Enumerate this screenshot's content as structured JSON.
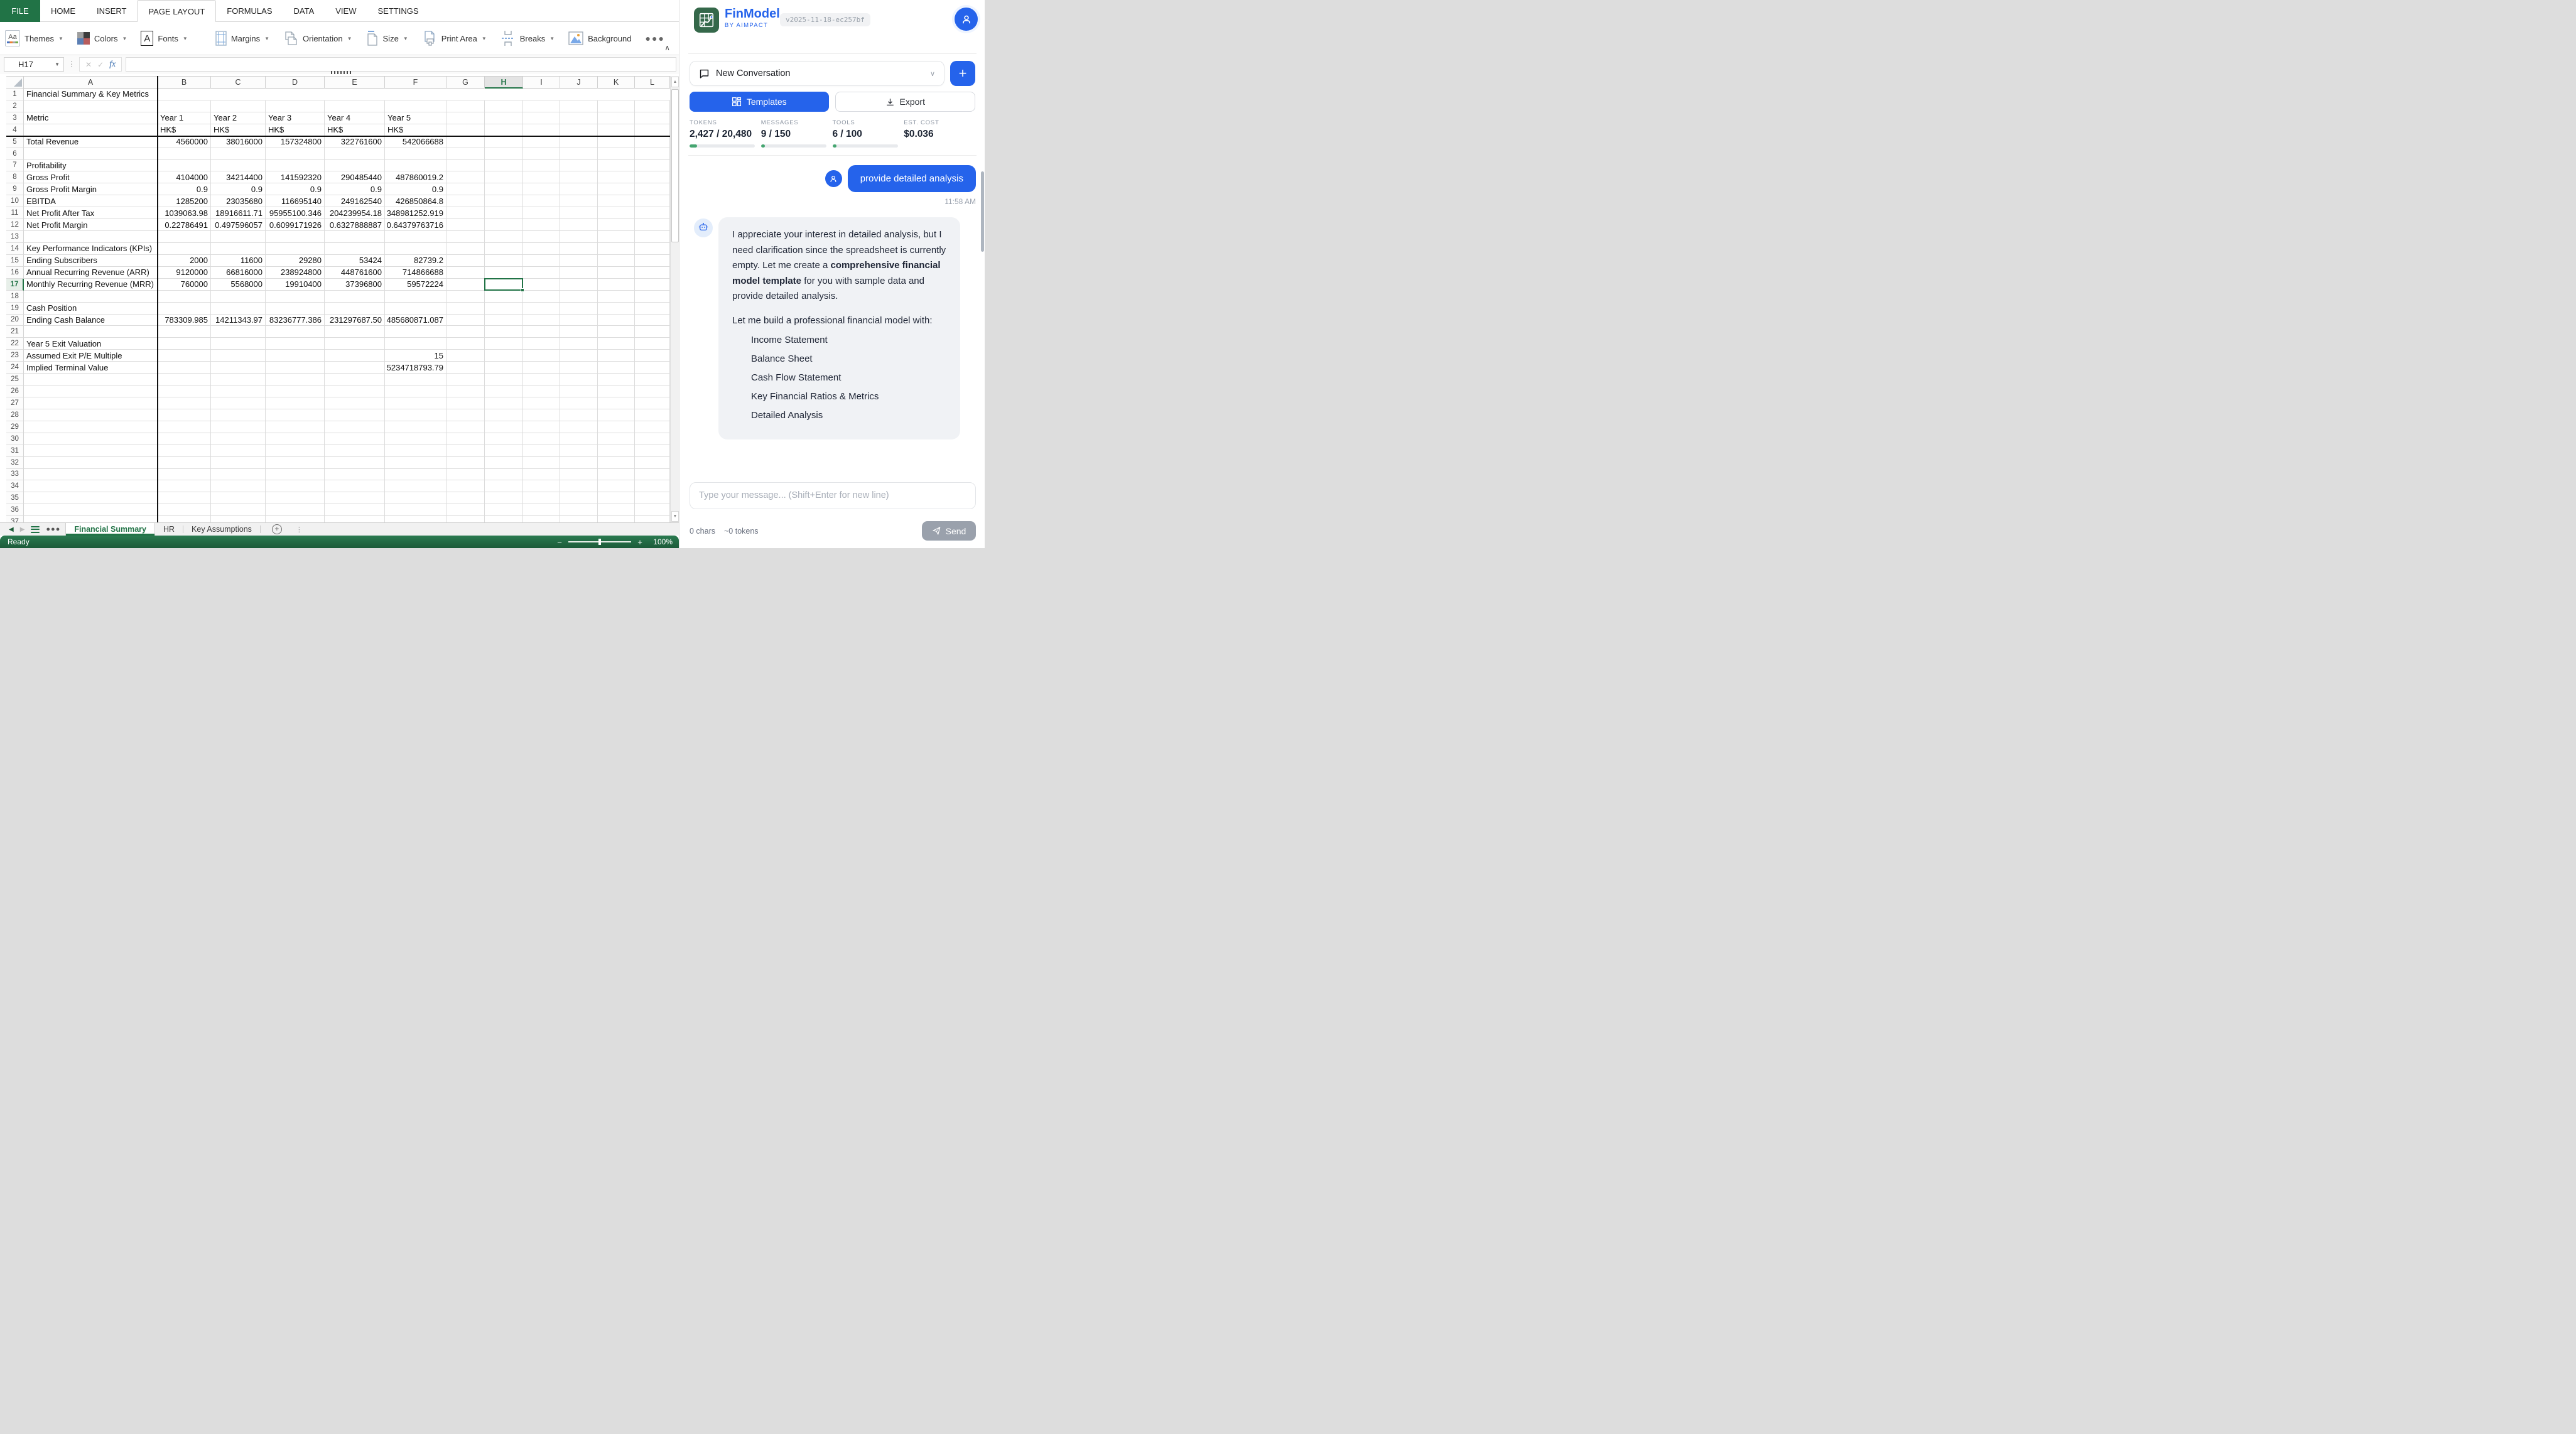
{
  "menubar": {
    "file_label": "FILE",
    "tabs": [
      "HOME",
      "INSERT",
      "PAGE LAYOUT",
      "FORMULAS",
      "DATA",
      "VIEW",
      "SETTINGS"
    ],
    "active_tab": "PAGE LAYOUT"
  },
  "ribbon": {
    "items": [
      {
        "label": "Themes"
      },
      {
        "label": "Colors"
      },
      {
        "label": "Fonts"
      },
      {
        "label": "Margins"
      },
      {
        "label": "Orientation"
      },
      {
        "label": "Size"
      },
      {
        "label": "Print Area"
      },
      {
        "label": "Breaks"
      },
      {
        "label": "Background"
      }
    ]
  },
  "formula_bar": {
    "name_box": "H17",
    "fx_label": "fx",
    "value": ""
  },
  "grid": {
    "columns": [
      "A",
      "B",
      "C",
      "D",
      "E",
      "F",
      "G",
      "H",
      "I",
      "J",
      "K",
      "L"
    ],
    "visible_rows": 37,
    "selected_cell": "H17",
    "selected_col": "H",
    "selected_row": 17,
    "cells": {
      "A1": "Financial Summary & Key Metrics",
      "A3": "Metric",
      "B3": "Year 1",
      "C3": "Year 2",
      "D3": "Year 3",
      "E3": "Year 4",
      "F3": "Year 5",
      "B4": "HK$",
      "C4": "HK$",
      "D4": "HK$",
      "E4": "HK$",
      "F4": "HK$",
      "A5": "Total Revenue",
      "B5": "4560000",
      "C5": "38016000",
      "D5": "157324800",
      "E5": "322761600",
      "F5": "542066688",
      "A7": "Profitability",
      "A8": "Gross Profit",
      "B8": "4104000",
      "C8": "34214400",
      "D8": "141592320",
      "E8": "290485440",
      "F8": "487860019.2",
      "A9": "Gross Profit Margin",
      "B9": "0.9",
      "C9": "0.9",
      "D9": "0.9",
      "E9": "0.9",
      "F9": "0.9",
      "A10": "EBITDA",
      "B10": "1285200",
      "C10": "23035680",
      "D10": "116695140",
      "E10": "249162540",
      "F10": "426850864.8",
      "A11": "Net Profit After Tax",
      "B11": "1039063.98",
      "C11": "18916611.71",
      "D11": "95955100.346",
      "E11": "204239954.18",
      "F11": "348981252.919",
      "A12": "Net Profit Margin",
      "B12": "0.22786491",
      "C12": "0.497596057",
      "D12": "0.6099171926",
      "E12": "0.6327888887",
      "F12": "0.64379763716",
      "A14": "Key Performance Indicators (KPIs)",
      "A15": "Ending Subscribers",
      "B15": "2000",
      "C15": "11600",
      "D15": "29280",
      "E15": "53424",
      "F15": "82739.2",
      "A16": "Annual Recurring Revenue (ARR)",
      "B16": "9120000",
      "C16": "66816000",
      "D16": "238924800",
      "E16": "448761600",
      "F16": "714866688",
      "A17": "Monthly Recurring Revenue (MRR)",
      "B17": "760000",
      "C17": "5568000",
      "D17": "19910400",
      "E17": "37396800",
      "F17": "59572224",
      "A19": "Cash Position",
      "A20": "Ending Cash Balance",
      "B20": "783309.985",
      "C20": "14211343.97",
      "D20": "83236777.386",
      "E20": "231297687.50",
      "F20": "485680871.087",
      "A22": "Year 5 Exit Valuation",
      "A23": "Assumed Exit P/E Multiple",
      "F23": "15",
      "A24": "Implied Terminal Value",
      "F24": "5234718793.79"
    }
  },
  "sheet_tabs": {
    "tabs": [
      "Financial Summary",
      "HR",
      "Key Assumptions"
    ],
    "active": "Financial Summary"
  },
  "status_bar": {
    "status": "Ready",
    "zoom": "100%"
  },
  "panel": {
    "brand": {
      "name": "FinModel",
      "by": "BY AIMPACT",
      "version": "v2025-11-18-ec257bf"
    },
    "conversation": {
      "label": "New Conversation"
    },
    "actions": {
      "templates": "Templates",
      "export": "Export",
      "new": "+"
    },
    "stats": [
      {
        "label": "TOKENS",
        "value": "2,427 / 20,480",
        "pct": 12
      },
      {
        "label": "MESSAGES",
        "value": "9 / 150",
        "pct": 6
      },
      {
        "label": "TOOLS",
        "value": "6 / 100",
        "pct": 6
      },
      {
        "label": "EST. COST",
        "value": "$0.036",
        "pct": null
      }
    ],
    "chat": {
      "user_message": "provide detailed analysis",
      "timestamp": "11:58 AM",
      "bot": {
        "p1_before": "I appreciate your interest in detailed analysis, but I need clarification since the spreadsheet is currently empty. Let me create a ",
        "p1_bold": "comprehensive financial model template",
        "p1_after": " for you with sample data and provide detailed analysis.",
        "p2": "Let me build a professional financial model with:",
        "list": [
          "Income Statement",
          "Balance Sheet",
          "Cash Flow Statement",
          "Key Financial Ratios & Metrics",
          "Detailed Analysis"
        ]
      }
    },
    "composer": {
      "placeholder": "Type your message... (Shift+Enter for new line)",
      "chars": "0 chars",
      "tokens": "~0 tokens",
      "send": "Send"
    }
  },
  "colors": {
    "excel_green": "#217346",
    "accent_blue": "#2563eb",
    "progress_green": "#45a570"
  }
}
